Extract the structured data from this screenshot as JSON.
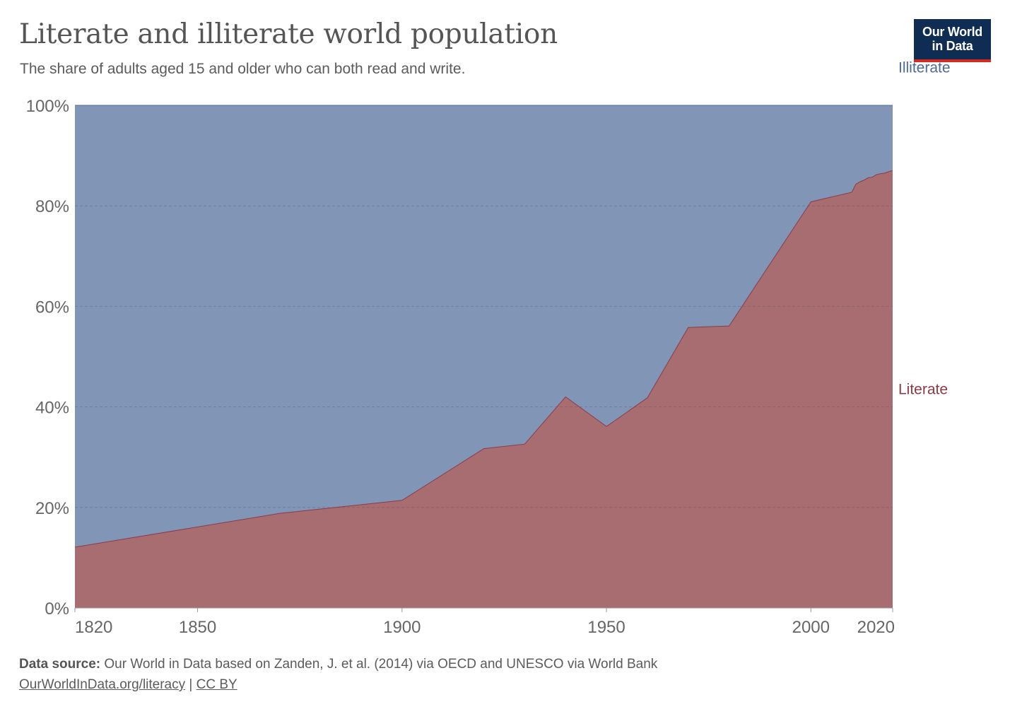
{
  "header": {
    "title": "Literate and illiterate world population",
    "subtitle": "The share of adults aged 15 and older who can both read and write."
  },
  "logo": {
    "line1": "Our World",
    "line2": "in Data"
  },
  "colors": {
    "literate": "#a86d71",
    "illiterate": "#8195b6",
    "literate_line": "#8c3a45",
    "illiterate_line": "#4c6a9c",
    "literate_label": "#8c3a45",
    "illiterate_label": "#4c6a9c"
  },
  "chart_data": {
    "type": "area",
    "stacked": true,
    "title": "Literate and illiterate world population",
    "xlim": [
      1820,
      2020
    ],
    "ylim": [
      0,
      100
    ],
    "x_ticks": [
      1820,
      1850,
      1900,
      1950,
      2000,
      2020
    ],
    "x_tick_labels": [
      "1820",
      "1850",
      "1900",
      "1950",
      "2000",
      "2020"
    ],
    "y_ticks": [
      0,
      20,
      40,
      60,
      80,
      100
    ],
    "y_tick_labels": [
      "0%",
      "20%",
      "40%",
      "60%",
      "80%",
      "100%"
    ],
    "grid": true,
    "series": [
      {
        "name": "Literate",
        "x": [
          1820,
          1870,
          1900,
          1920,
          1930,
          1940,
          1950,
          1960,
          1970,
          1980,
          2000,
          2010,
          2011,
          2012,
          2013,
          2014,
          2015,
          2016,
          2017,
          2018,
          2019,
          2020
        ],
        "values": [
          12.1,
          18.8,
          21.4,
          31.7,
          32.6,
          42.0,
          36.1,
          41.8,
          55.8,
          56.1,
          80.8,
          82.7,
          84.3,
          84.8,
          85.1,
          85.6,
          85.7,
          86.2,
          86.4,
          86.5,
          86.8,
          87.0
        ]
      },
      {
        "name": "Illiterate",
        "x": [
          1820,
          1870,
          1900,
          1920,
          1930,
          1940,
          1950,
          1960,
          1970,
          1980,
          2000,
          2010,
          2011,
          2012,
          2013,
          2014,
          2015,
          2016,
          2017,
          2018,
          2019,
          2020
        ],
        "values": [
          87.9,
          81.2,
          78.6,
          68.3,
          67.4,
          58.0,
          63.9,
          58.2,
          44.2,
          43.9,
          19.2,
          17.3,
          15.7,
          15.2,
          14.9,
          14.4,
          14.3,
          13.8,
          13.6,
          13.5,
          13.2,
          13.0
        ]
      }
    ],
    "legend": [
      {
        "name": "Illiterate",
        "placement": "right-top"
      },
      {
        "name": "Literate",
        "placement": "right-middle"
      }
    ]
  },
  "footer": {
    "source_label": "Data source:",
    "source_text": "Our World in Data based on Zanden, J. et al. (2014) via OECD and UNESCO via World Bank",
    "link_text": "OurWorldInData.org/literacy",
    "separator": "|",
    "license": "CC BY"
  }
}
